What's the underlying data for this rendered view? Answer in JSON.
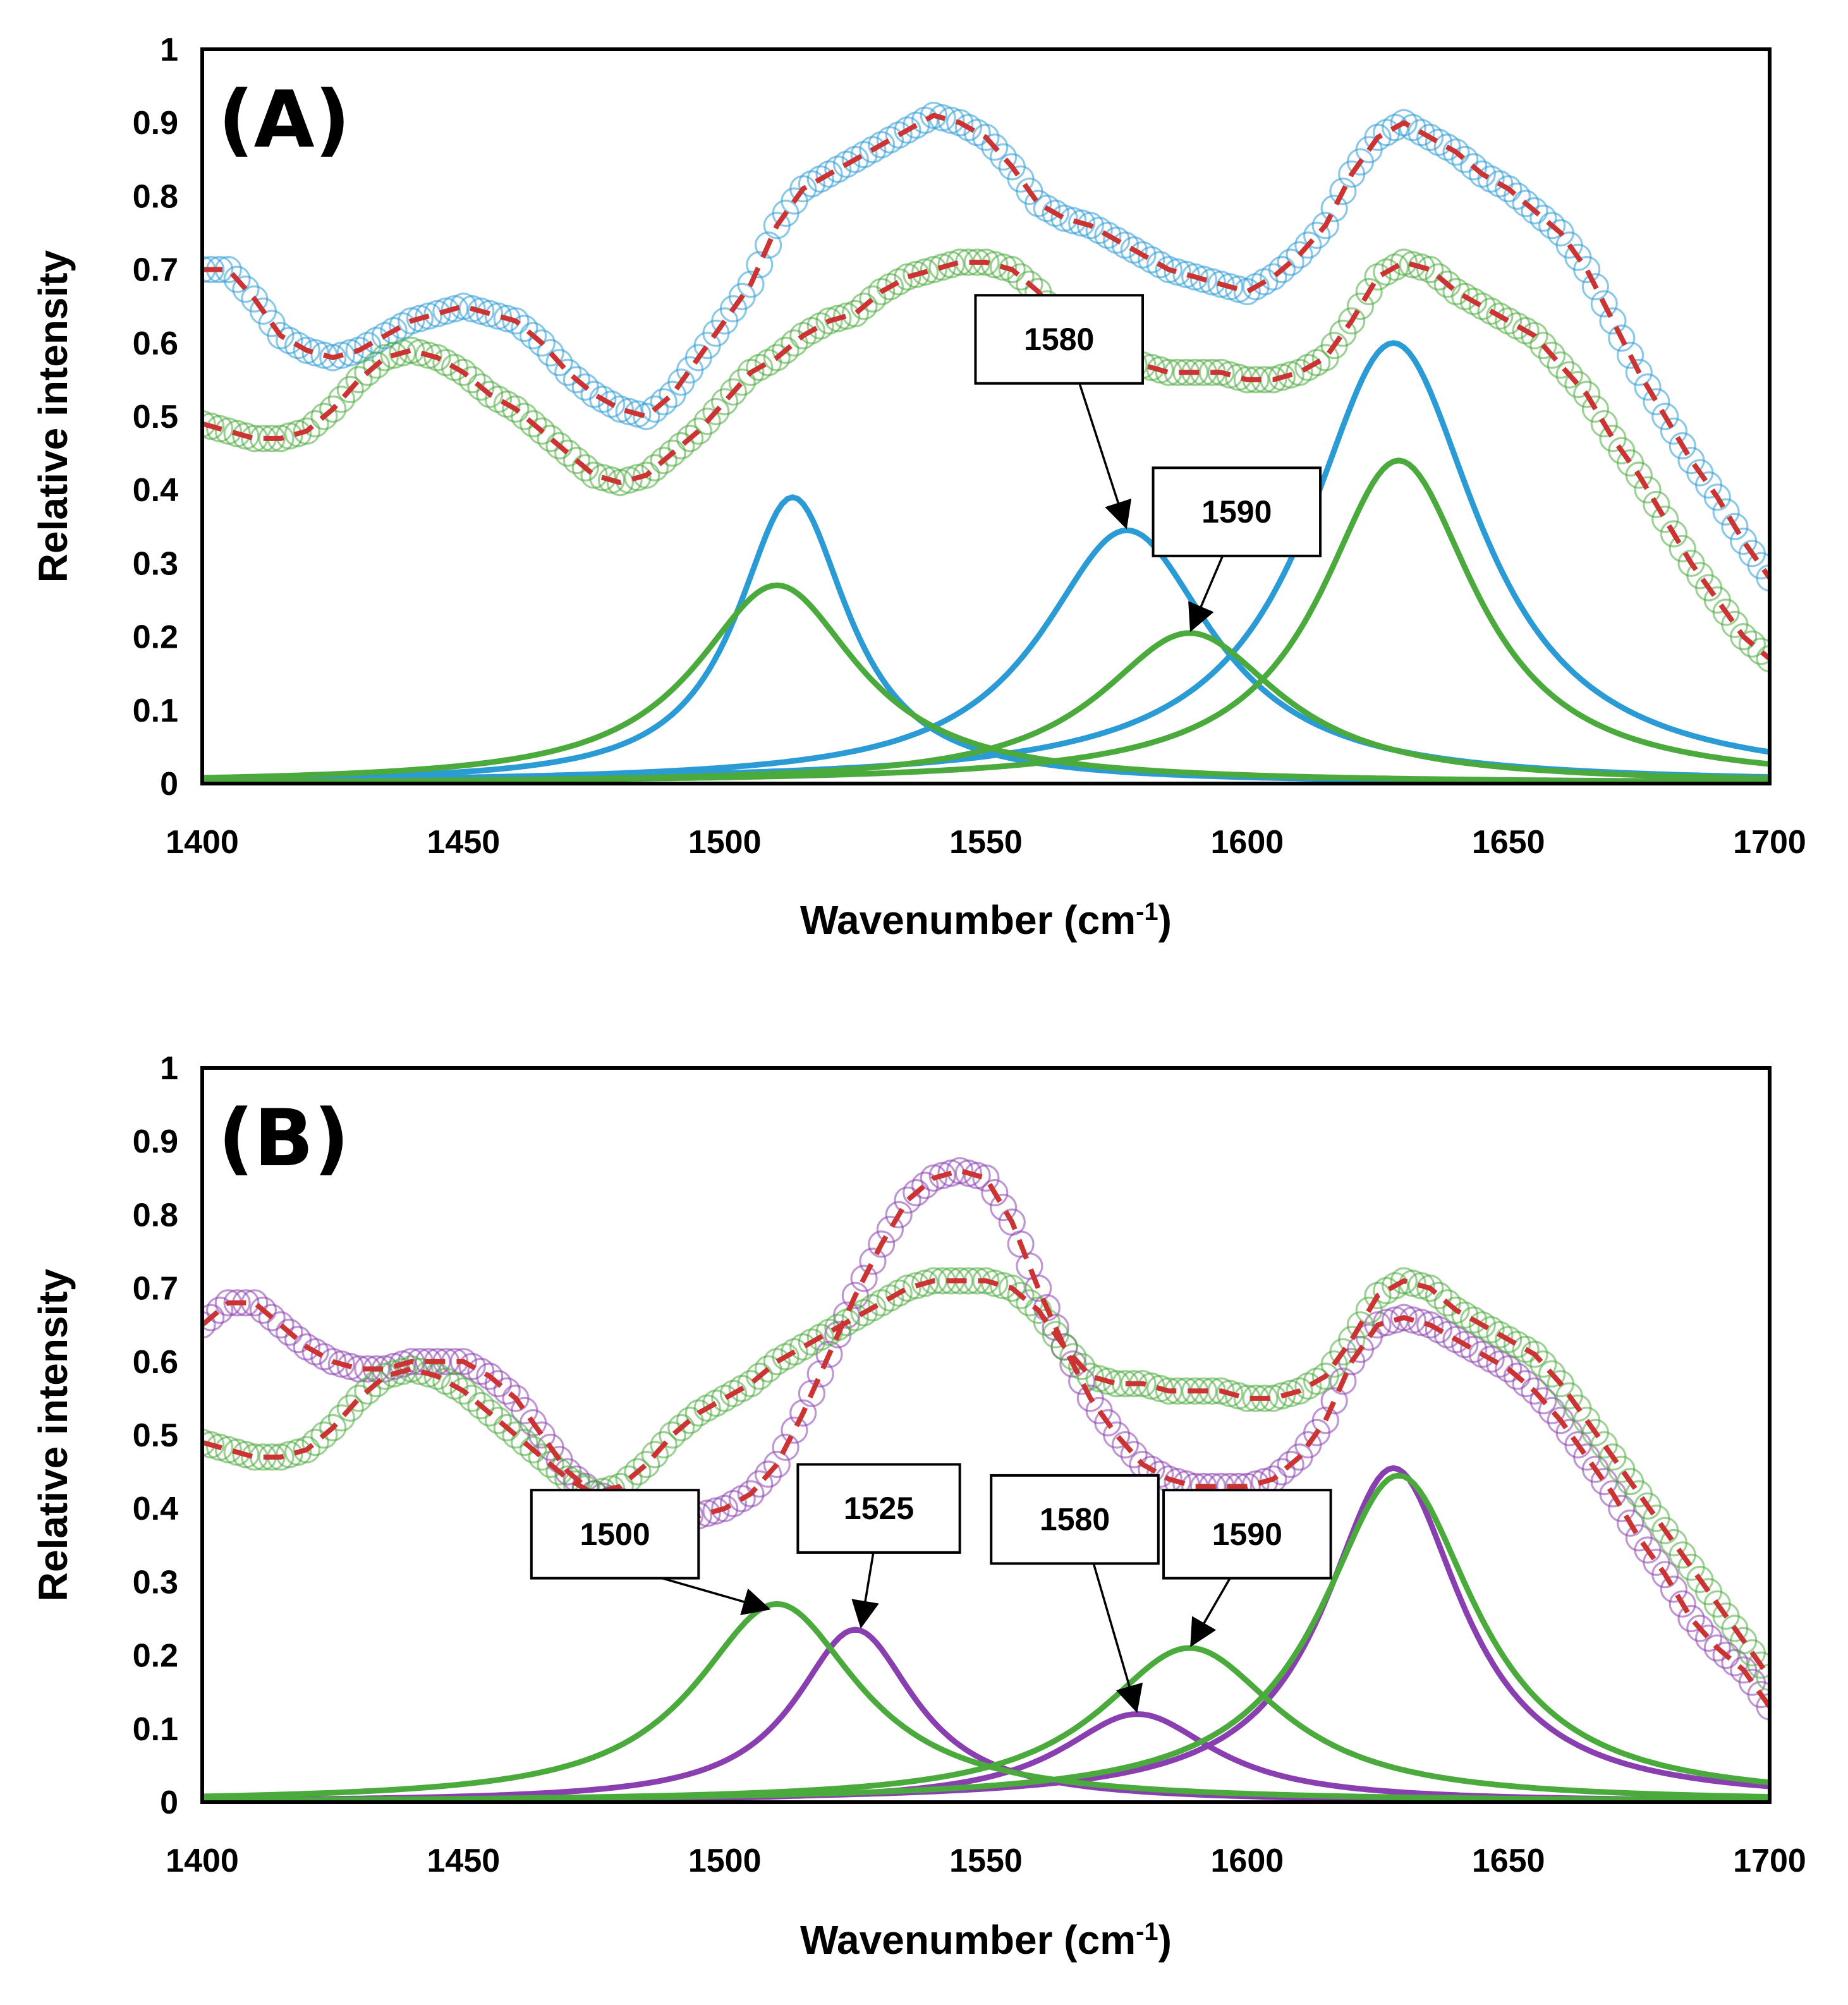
{
  "chart_data": [
    {
      "panel": "(A)",
      "type": "line",
      "xlabel": "Wavenumber (cm",
      "xlabel_sup": "-1",
      "xlabel_close": ")",
      "ylabel": "Relative intensity",
      "xlim": [
        1400,
        1700
      ],
      "ylim": [
        0,
        1
      ],
      "xticks": [
        1400,
        1450,
        1500,
        1550,
        1600,
        1650,
        1700
      ],
      "yticks": [
        0,
        0.1,
        0.2,
        0.3,
        0.4,
        0.5,
        0.6,
        0.7,
        0.8,
        0.9,
        1
      ],
      "colors": {
        "blue": "#2b9bd6",
        "green": "#4aaa3c",
        "purple": "#8a3fb0",
        "fit": "#cc3333"
      },
      "measured": [
        {
          "name": "blue spectrum",
          "color": "blue",
          "x": [
            1400,
            1405,
            1410,
            1415,
            1420,
            1425,
            1430,
            1435,
            1440,
            1445,
            1450,
            1455,
            1460,
            1465,
            1470,
            1475,
            1480,
            1485,
            1490,
            1495,
            1500,
            1505,
            1510,
            1515,
            1520,
            1525,
            1530,
            1535,
            1540,
            1545,
            1550,
            1555,
            1560,
            1565,
            1570,
            1575,
            1580,
            1585,
            1590,
            1595,
            1600,
            1605,
            1610,
            1615,
            1620,
            1625,
            1630,
            1635,
            1640,
            1645,
            1650,
            1655,
            1660,
            1665,
            1670,
            1675,
            1680,
            1685,
            1690,
            1695,
            1700
          ],
          "y": [
            0.7,
            0.7,
            0.66,
            0.61,
            0.59,
            0.58,
            0.59,
            0.61,
            0.63,
            0.64,
            0.65,
            0.64,
            0.63,
            0.6,
            0.56,
            0.53,
            0.51,
            0.5,
            0.53,
            0.58,
            0.63,
            0.68,
            0.76,
            0.81,
            0.83,
            0.85,
            0.87,
            0.89,
            0.91,
            0.9,
            0.88,
            0.84,
            0.79,
            0.77,
            0.76,
            0.74,
            0.72,
            0.7,
            0.69,
            0.68,
            0.67,
            0.69,
            0.72,
            0.76,
            0.83,
            0.88,
            0.9,
            0.88,
            0.86,
            0.83,
            0.81,
            0.78,
            0.75,
            0.7,
            0.63,
            0.56,
            0.5,
            0.44,
            0.39,
            0.33,
            0.28
          ]
        },
        {
          "name": "green spectrum",
          "color": "green",
          "x": [
            1400,
            1405,
            1410,
            1415,
            1420,
            1425,
            1430,
            1435,
            1440,
            1445,
            1450,
            1455,
            1460,
            1465,
            1470,
            1475,
            1480,
            1485,
            1490,
            1495,
            1500,
            1505,
            1510,
            1515,
            1520,
            1525,
            1530,
            1535,
            1540,
            1545,
            1550,
            1555,
            1560,
            1565,
            1570,
            1575,
            1580,
            1585,
            1590,
            1595,
            1600,
            1605,
            1610,
            1615,
            1620,
            1625,
            1630,
            1635,
            1640,
            1645,
            1650,
            1655,
            1660,
            1665,
            1670,
            1675,
            1680,
            1685,
            1690,
            1695,
            1700
          ],
          "y": [
            0.49,
            0.48,
            0.47,
            0.47,
            0.48,
            0.51,
            0.55,
            0.58,
            0.59,
            0.58,
            0.56,
            0.53,
            0.51,
            0.48,
            0.45,
            0.42,
            0.41,
            0.42,
            0.45,
            0.48,
            0.52,
            0.56,
            0.58,
            0.61,
            0.63,
            0.64,
            0.67,
            0.69,
            0.7,
            0.71,
            0.71,
            0.7,
            0.67,
            0.62,
            0.58,
            0.57,
            0.57,
            0.56,
            0.56,
            0.56,
            0.55,
            0.55,
            0.56,
            0.58,
            0.63,
            0.69,
            0.71,
            0.7,
            0.67,
            0.65,
            0.63,
            0.61,
            0.57,
            0.53,
            0.47,
            0.42,
            0.36,
            0.3,
            0.25,
            0.2,
            0.17
          ]
        }
      ],
      "fits": [
        {
          "name": "blue fit",
          "color": "fit",
          "of": 0
        },
        {
          "name": "green fit",
          "color": "fit",
          "of": 1
        }
      ],
      "components": [
        {
          "name": "blue 1515",
          "color": "blue",
          "center": 1513,
          "height": 0.39,
          "width": 13
        },
        {
          "name": "blue 1580",
          "color": "blue",
          "center": 1577,
          "height": 0.345,
          "width": 20
        },
        {
          "name": "blue 1630",
          "color": "blue",
          "center": 1628,
          "height": 0.6,
          "width": 20
        },
        {
          "name": "green 1510",
          "color": "green",
          "center": 1510,
          "height": 0.27,
          "width": 19
        },
        {
          "name": "green 1590",
          "color": "green",
          "center": 1589,
          "height": 0.205,
          "width": 21
        },
        {
          "name": "green 1630",
          "color": "green",
          "center": 1629,
          "height": 0.44,
          "width": 18
        }
      ],
      "annotations": [
        {
          "text": "1580",
          "box_x": [
            1548,
            1580
          ],
          "box_y": [
            0.545,
            0.665
          ],
          "point_to": [
            1577,
            0.345
          ]
        },
        {
          "text": "1590",
          "box_x": [
            1582,
            1614
          ],
          "box_y": [
            0.31,
            0.43
          ],
          "point_to": [
            1589,
            0.205
          ]
        }
      ]
    },
    {
      "panel": "(B)",
      "type": "line",
      "xlabel": "Wavenumber (cm",
      "xlabel_sup": "-1",
      "xlabel_close": ")",
      "ylabel": "Relative intensity",
      "xlim": [
        1400,
        1700
      ],
      "ylim": [
        0,
        1
      ],
      "xticks": [
        1400,
        1450,
        1500,
        1550,
        1600,
        1650,
        1700
      ],
      "yticks": [
        0,
        0.1,
        0.2,
        0.3,
        0.4,
        0.5,
        0.6,
        0.7,
        0.8,
        0.9,
        1
      ],
      "colors": {
        "blue": "#2b9bd6",
        "green": "#4aaa3c",
        "purple": "#8a3fb0",
        "fit": "#cc3333"
      },
      "measured": [
        {
          "name": "purple spectrum",
          "color": "purple",
          "x": [
            1400,
            1405,
            1410,
            1415,
            1420,
            1425,
            1430,
            1435,
            1440,
            1445,
            1450,
            1455,
            1460,
            1465,
            1470,
            1475,
            1480,
            1485,
            1490,
            1495,
            1500,
            1505,
            1510,
            1515,
            1520,
            1525,
            1530,
            1535,
            1540,
            1545,
            1550,
            1555,
            1560,
            1565,
            1570,
            1575,
            1580,
            1585,
            1590,
            1595,
            1600,
            1605,
            1610,
            1615,
            1620,
            1625,
            1630,
            1635,
            1640,
            1645,
            1650,
            1655,
            1660,
            1665,
            1670,
            1675,
            1680,
            1685,
            1690,
            1695,
            1700
          ],
          "y": [
            0.65,
            0.68,
            0.68,
            0.65,
            0.62,
            0.6,
            0.59,
            0.59,
            0.6,
            0.6,
            0.6,
            0.58,
            0.55,
            0.5,
            0.45,
            0.42,
            0.41,
            0.4,
            0.39,
            0.39,
            0.4,
            0.42,
            0.46,
            0.53,
            0.61,
            0.69,
            0.76,
            0.82,
            0.85,
            0.86,
            0.85,
            0.79,
            0.7,
            0.62,
            0.55,
            0.5,
            0.46,
            0.44,
            0.43,
            0.43,
            0.43,
            0.44,
            0.47,
            0.52,
            0.6,
            0.65,
            0.66,
            0.65,
            0.63,
            0.61,
            0.59,
            0.56,
            0.52,
            0.47,
            0.42,
            0.36,
            0.31,
            0.25,
            0.21,
            0.18,
            0.13
          ]
        },
        {
          "name": "green spectrum",
          "color": "green",
          "x": [
            1400,
            1405,
            1410,
            1415,
            1420,
            1425,
            1430,
            1435,
            1440,
            1445,
            1450,
            1455,
            1460,
            1465,
            1470,
            1475,
            1480,
            1485,
            1490,
            1495,
            1500,
            1505,
            1510,
            1515,
            1520,
            1525,
            1530,
            1535,
            1540,
            1545,
            1550,
            1555,
            1560,
            1565,
            1570,
            1575,
            1580,
            1585,
            1590,
            1595,
            1600,
            1605,
            1610,
            1615,
            1620,
            1625,
            1630,
            1635,
            1640,
            1645,
            1650,
            1655,
            1660,
            1665,
            1670,
            1675,
            1680,
            1685,
            1690,
            1695,
            1700
          ],
          "y": [
            0.49,
            0.48,
            0.47,
            0.47,
            0.48,
            0.51,
            0.55,
            0.58,
            0.59,
            0.58,
            0.56,
            0.53,
            0.5,
            0.47,
            0.44,
            0.42,
            0.43,
            0.46,
            0.5,
            0.53,
            0.55,
            0.57,
            0.6,
            0.62,
            0.64,
            0.66,
            0.68,
            0.7,
            0.71,
            0.71,
            0.71,
            0.7,
            0.67,
            0.62,
            0.58,
            0.57,
            0.57,
            0.56,
            0.56,
            0.56,
            0.55,
            0.55,
            0.56,
            0.58,
            0.63,
            0.69,
            0.71,
            0.7,
            0.67,
            0.65,
            0.63,
            0.61,
            0.57,
            0.52,
            0.47,
            0.42,
            0.37,
            0.32,
            0.27,
            0.22,
            0.17
          ]
        }
      ],
      "fits": [
        {
          "name": "purple fit",
          "color": "fit",
          "of": 0
        },
        {
          "name": "green fit",
          "color": "fit",
          "of": 1
        }
      ],
      "components": [
        {
          "name": "purple 1525",
          "color": "purple",
          "center": 1525,
          "height": 0.235,
          "width": 14
        },
        {
          "name": "purple 1580",
          "color": "purple",
          "center": 1579,
          "height": 0.12,
          "width": 18
        },
        {
          "name": "purple 1630",
          "color": "purple",
          "center": 1628,
          "height": 0.455,
          "width": 16
        },
        {
          "name": "green 1510",
          "color": "green",
          "center": 1510,
          "height": 0.27,
          "width": 19
        },
        {
          "name": "green 1590",
          "color": "green",
          "center": 1589,
          "height": 0.21,
          "width": 21
        },
        {
          "name": "green 1630",
          "color": "green",
          "center": 1629,
          "height": 0.445,
          "width": 18
        }
      ],
      "annotations": [
        {
          "text": "1500",
          "box_x": [
            1463,
            1495
          ],
          "box_y": [
            0.305,
            0.425
          ],
          "point_to": [
            1509,
            0.262
          ]
        },
        {
          "text": "1525",
          "box_x": [
            1514,
            1545
          ],
          "box_y": [
            0.34,
            0.46
          ],
          "point_to": [
            1526,
            0.235
          ]
        },
        {
          "text": "1580",
          "box_x": [
            1551,
            1583
          ],
          "box_y": [
            0.325,
            0.445
          ],
          "point_to": [
            1579,
            0.12
          ]
        },
        {
          "text": "1590",
          "box_x": [
            1584,
            1616
          ],
          "box_y": [
            0.305,
            0.425
          ],
          "point_to": [
            1589,
            0.21
          ]
        }
      ]
    }
  ]
}
